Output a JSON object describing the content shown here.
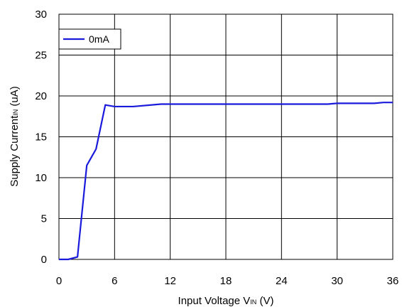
{
  "chart_data": {
    "type": "line",
    "xlabel": {
      "main": "Input Voltage V",
      "sub": "IN",
      "unit": " (V)"
    },
    "ylabel": {
      "main": "Supply Current",
      "sub": "IN",
      "unit": " (uA)"
    },
    "xlim": [
      0,
      36
    ],
    "ylim": [
      0,
      30
    ],
    "xticks": [
      0,
      6,
      12,
      18,
      24,
      30,
      36
    ],
    "yticks": [
      0,
      5,
      10,
      15,
      20,
      25,
      30
    ],
    "grid": true,
    "legend_position": "top-left",
    "series": [
      {
        "name": "0mA",
        "color": "#1a1adc",
        "x": [
          0,
          1,
          2,
          3,
          4,
          5,
          6,
          8,
          11,
          15,
          20,
          25,
          29,
          30,
          34,
          35,
          36
        ],
        "y": [
          0,
          0,
          0.3,
          11.5,
          13.5,
          18.9,
          18.7,
          18.7,
          19.0,
          19.0,
          19.0,
          19.0,
          19.0,
          19.1,
          19.1,
          19.2,
          19.2
        ]
      }
    ]
  }
}
